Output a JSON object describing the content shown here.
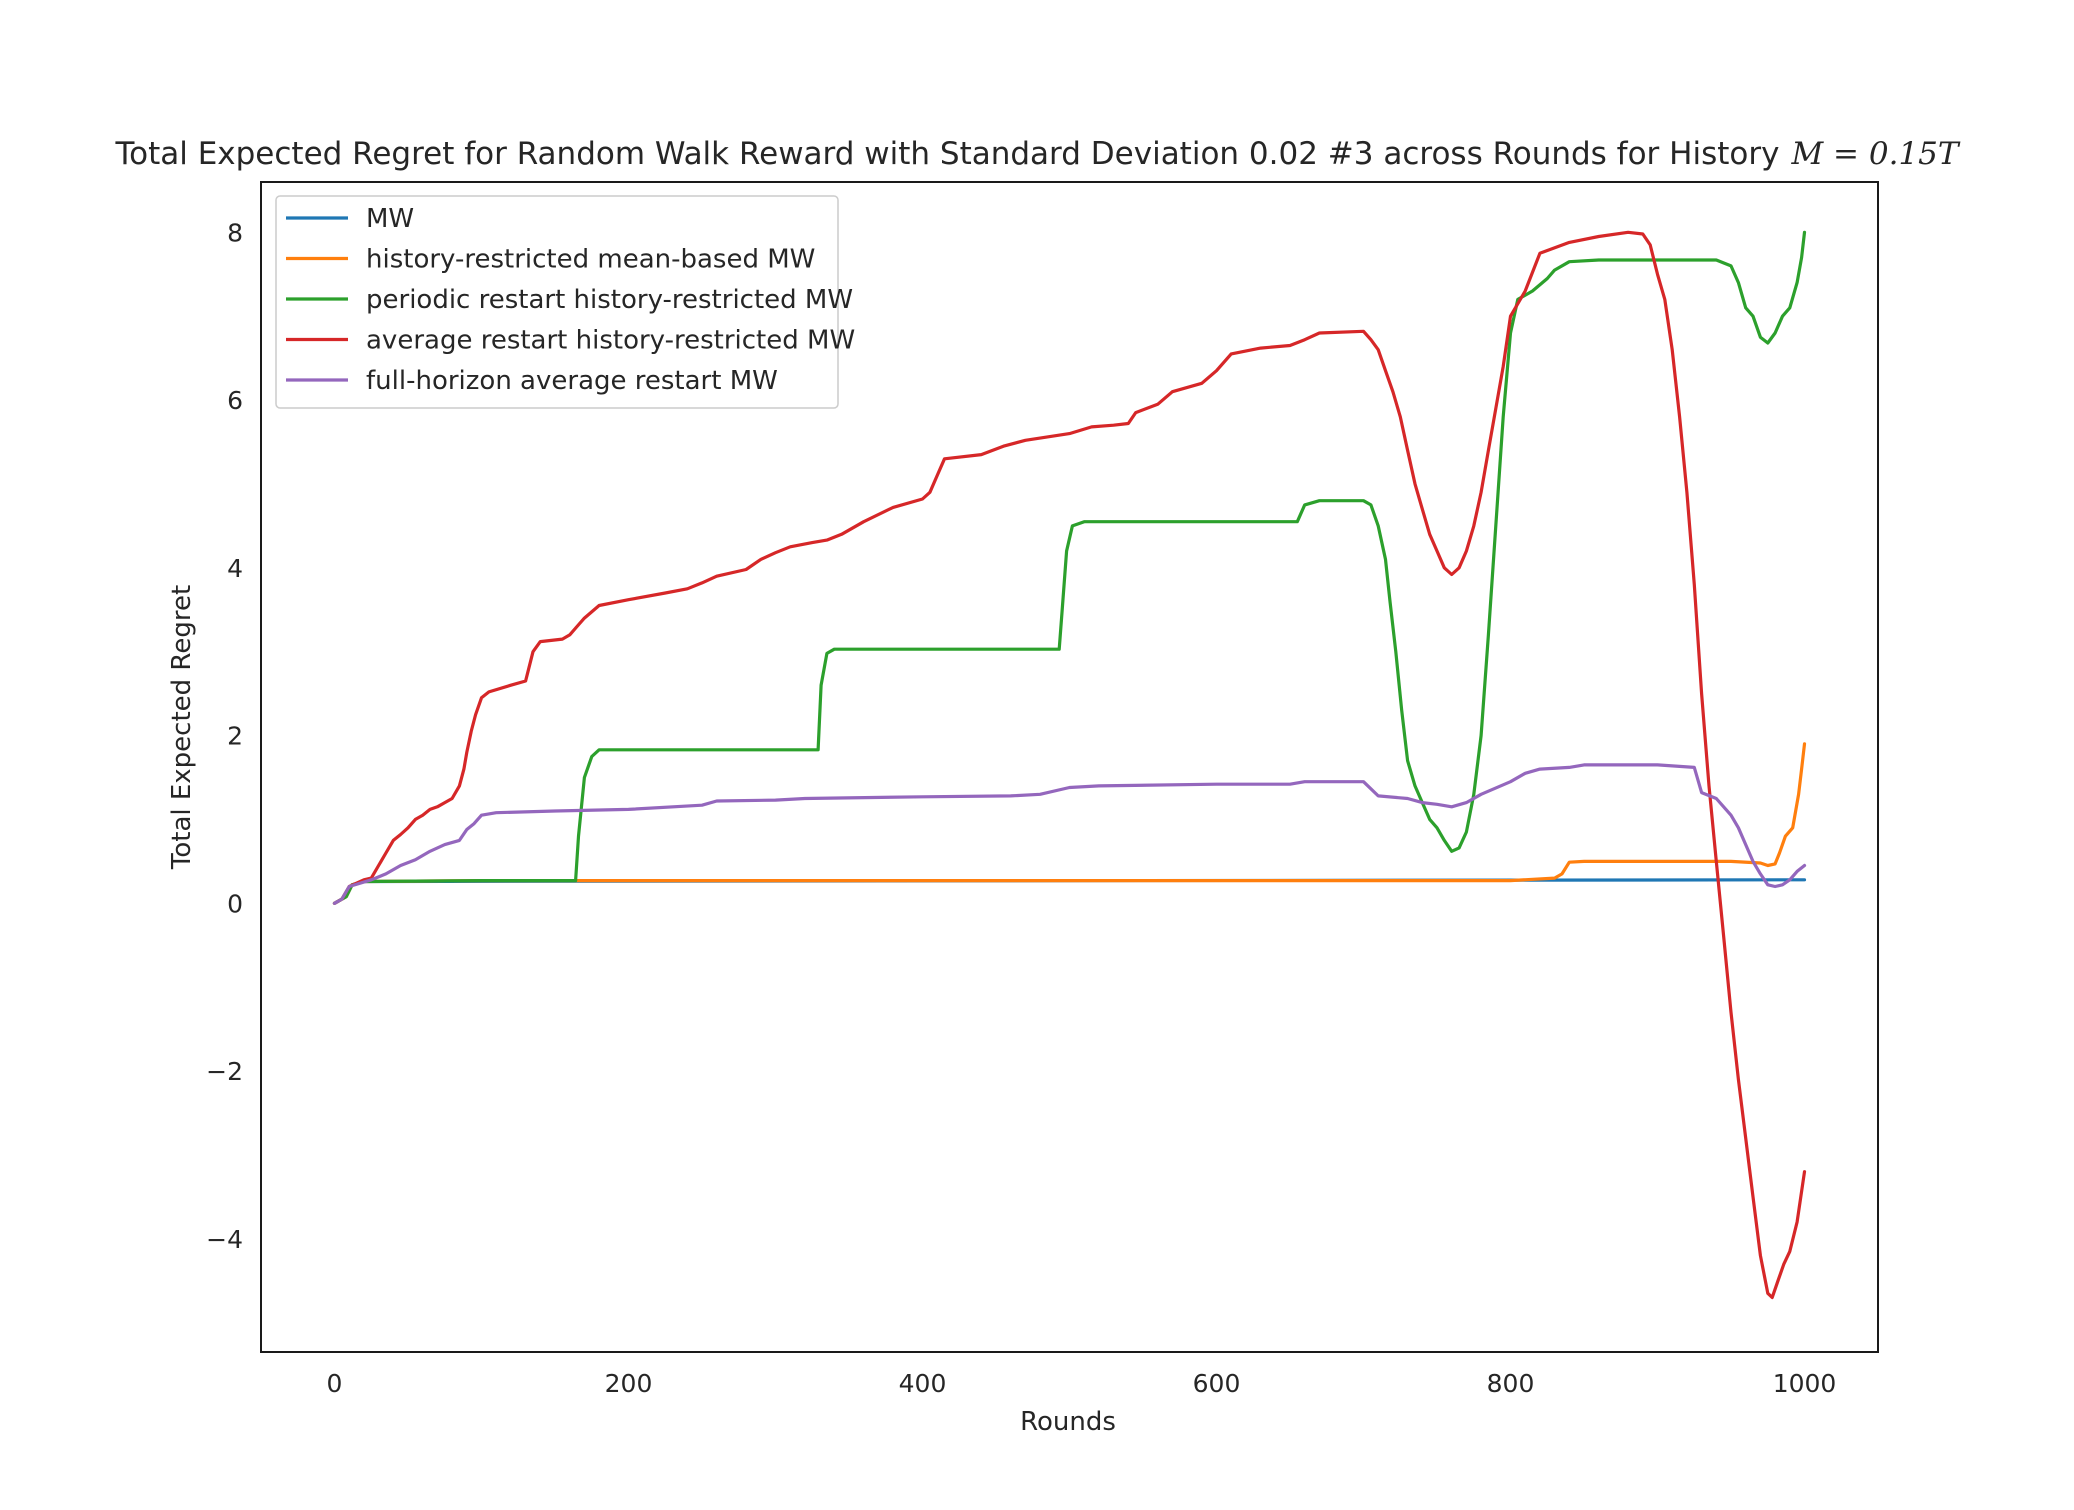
{
  "chart_data": {
    "type": "line",
    "title": "Total Expected Regret for Random Walk Reward with Standard Deviation 0.02 #3 across Rounds for History",
    "title_math": "M = 0.15T",
    "xlabel": "Rounds",
    "ylabel": "Total Expected Regret",
    "xlim": [
      -50,
      1050
    ],
    "ylim": [
      -5.35,
      8.6
    ],
    "xticks": [
      0,
      200,
      400,
      600,
      800,
      1000
    ],
    "xtick_labels": [
      "0",
      "200",
      "400",
      "600",
      "800",
      "1000"
    ],
    "yticks": [
      -4,
      -2,
      0,
      2,
      4,
      6,
      8
    ],
    "ytick_labels": [
      "−4",
      "−2",
      "0",
      "2",
      "4",
      "6",
      "8"
    ],
    "grid": false,
    "legend_position": "top-left",
    "series": [
      {
        "name": "MW",
        "color": "#1f77b4",
        "points": [
          [
            0,
            0
          ],
          [
            3,
            0.03
          ],
          [
            8,
            0.08
          ],
          [
            12,
            0.22
          ],
          [
            20,
            0.26
          ],
          [
            1000,
            0.28
          ]
        ]
      },
      {
        "name": "history-restricted mean-based MW",
        "color": "#ff7f0e",
        "points": [
          [
            0,
            0
          ],
          [
            3,
            0.03
          ],
          [
            8,
            0.08
          ],
          [
            12,
            0.22
          ],
          [
            20,
            0.26
          ],
          [
            100,
            0.27
          ],
          [
            300,
            0.27
          ],
          [
            600,
            0.27
          ],
          [
            800,
            0.27
          ],
          [
            830,
            0.3
          ],
          [
            835,
            0.35
          ],
          [
            840,
            0.49
          ],
          [
            850,
            0.5
          ],
          [
            900,
            0.5
          ],
          [
            950,
            0.5
          ],
          [
            970,
            0.48
          ],
          [
            975,
            0.45
          ],
          [
            980,
            0.47
          ],
          [
            983,
            0.6
          ],
          [
            987,
            0.8
          ],
          [
            992,
            0.9
          ],
          [
            996,
            1.3
          ],
          [
            998,
            1.6
          ],
          [
            1000,
            1.9
          ]
        ]
      },
      {
        "name": "periodic restart history-restricted MW",
        "color": "#2ca02c",
        "points": [
          [
            0,
            0
          ],
          [
            3,
            0.03
          ],
          [
            8,
            0.08
          ],
          [
            12,
            0.22
          ],
          [
            20,
            0.26
          ],
          [
            100,
            0.27
          ],
          [
            164,
            0.27
          ],
          [
            166,
            0.8
          ],
          [
            170,
            1.5
          ],
          [
            175,
            1.75
          ],
          [
            180,
            1.83
          ],
          [
            200,
            1.83
          ],
          [
            329,
            1.83
          ],
          [
            331,
            2.6
          ],
          [
            335,
            2.98
          ],
          [
            340,
            3.03
          ],
          [
            400,
            3.03
          ],
          [
            493,
            3.03
          ],
          [
            495,
            3.5
          ],
          [
            498,
            4.2
          ],
          [
            502,
            4.5
          ],
          [
            510,
            4.55
          ],
          [
            600,
            4.55
          ],
          [
            655,
            4.55
          ],
          [
            660,
            4.75
          ],
          [
            670,
            4.8
          ],
          [
            700,
            4.8
          ],
          [
            705,
            4.75
          ],
          [
            710,
            4.5
          ],
          [
            715,
            4.1
          ],
          [
            718,
            3.6
          ],
          [
            722,
            3.0
          ],
          [
            726,
            2.3
          ],
          [
            730,
            1.7
          ],
          [
            735,
            1.4
          ],
          [
            740,
            1.2
          ],
          [
            745,
            1.0
          ],
          [
            750,
            0.9
          ],
          [
            755,
            0.75
          ],
          [
            760,
            0.62
          ],
          [
            765,
            0.66
          ],
          [
            770,
            0.85
          ],
          [
            775,
            1.3
          ],
          [
            780,
            2.0
          ],
          [
            785,
            3.2
          ],
          [
            790,
            4.5
          ],
          [
            795,
            5.8
          ],
          [
            800,
            6.8
          ],
          [
            805,
            7.2
          ],
          [
            815,
            7.3
          ],
          [
            825,
            7.45
          ],
          [
            830,
            7.55
          ],
          [
            840,
            7.65
          ],
          [
            860,
            7.67
          ],
          [
            900,
            7.67
          ],
          [
            940,
            7.67
          ],
          [
            950,
            7.6
          ],
          [
            955,
            7.4
          ],
          [
            960,
            7.1
          ],
          [
            965,
            7.0
          ],
          [
            970,
            6.75
          ],
          [
            975,
            6.68
          ],
          [
            980,
            6.8
          ],
          [
            985,
            7.0
          ],
          [
            990,
            7.1
          ],
          [
            995,
            7.4
          ],
          [
            998,
            7.7
          ],
          [
            1000,
            8.0
          ]
        ]
      },
      {
        "name": "average restart history-restricted MW",
        "color": "#d62728",
        "points": [
          [
            0,
            0
          ],
          [
            5,
            0.05
          ],
          [
            10,
            0.2
          ],
          [
            20,
            0.28
          ],
          [
            25,
            0.3
          ],
          [
            30,
            0.45
          ],
          [
            35,
            0.6
          ],
          [
            40,
            0.75
          ],
          [
            45,
            0.82
          ],
          [
            50,
            0.9
          ],
          [
            55,
            1.0
          ],
          [
            60,
            1.05
          ],
          [
            65,
            1.12
          ],
          [
            70,
            1.15
          ],
          [
            75,
            1.2
          ],
          [
            80,
            1.25
          ],
          [
            85,
            1.4
          ],
          [
            88,
            1.6
          ],
          [
            90,
            1.8
          ],
          [
            93,
            2.05
          ],
          [
            96,
            2.25
          ],
          [
            100,
            2.45
          ],
          [
            105,
            2.52
          ],
          [
            120,
            2.6
          ],
          [
            130,
            2.65
          ],
          [
            135,
            3.0
          ],
          [
            140,
            3.12
          ],
          [
            155,
            3.15
          ],
          [
            160,
            3.2
          ],
          [
            165,
            3.3
          ],
          [
            170,
            3.4
          ],
          [
            180,
            3.55
          ],
          [
            200,
            3.62
          ],
          [
            225,
            3.7
          ],
          [
            240,
            3.75
          ],
          [
            250,
            3.82
          ],
          [
            260,
            3.9
          ],
          [
            280,
            3.98
          ],
          [
            290,
            4.1
          ],
          [
            300,
            4.18
          ],
          [
            310,
            4.25
          ],
          [
            325,
            4.3
          ],
          [
            335,
            4.33
          ],
          [
            345,
            4.4
          ],
          [
            360,
            4.55
          ],
          [
            380,
            4.72
          ],
          [
            400,
            4.82
          ],
          [
            405,
            4.9
          ],
          [
            410,
            5.1
          ],
          [
            415,
            5.3
          ],
          [
            440,
            5.35
          ],
          [
            455,
            5.45
          ],
          [
            470,
            5.52
          ],
          [
            500,
            5.6
          ],
          [
            515,
            5.68
          ],
          [
            530,
            5.7
          ],
          [
            540,
            5.72
          ],
          [
            545,
            5.85
          ],
          [
            560,
            5.95
          ],
          [
            570,
            6.1
          ],
          [
            590,
            6.2
          ],
          [
            600,
            6.35
          ],
          [
            610,
            6.55
          ],
          [
            630,
            6.62
          ],
          [
            650,
            6.65
          ],
          [
            660,
            6.72
          ],
          [
            670,
            6.8
          ],
          [
            700,
            6.82
          ],
          [
            705,
            6.72
          ],
          [
            710,
            6.6
          ],
          [
            715,
            6.35
          ],
          [
            720,
            6.1
          ],
          [
            725,
            5.8
          ],
          [
            730,
            5.4
          ],
          [
            735,
            5.0
          ],
          [
            740,
            4.7
          ],
          [
            745,
            4.4
          ],
          [
            750,
            4.2
          ],
          [
            755,
            4.0
          ],
          [
            760,
            3.92
          ],
          [
            765,
            4.0
          ],
          [
            770,
            4.2
          ],
          [
            775,
            4.5
          ],
          [
            780,
            4.9
          ],
          [
            785,
            5.4
          ],
          [
            790,
            5.9
          ],
          [
            795,
            6.4
          ],
          [
            800,
            7.0
          ],
          [
            810,
            7.3
          ],
          [
            820,
            7.75
          ],
          [
            840,
            7.88
          ],
          [
            860,
            7.95
          ],
          [
            880,
            8.0
          ],
          [
            890,
            7.98
          ],
          [
            895,
            7.85
          ],
          [
            900,
            7.5
          ],
          [
            905,
            7.2
          ],
          [
            910,
            6.6
          ],
          [
            915,
            5.8
          ],
          [
            920,
            4.9
          ],
          [
            925,
            3.8
          ],
          [
            930,
            2.5
          ],
          [
            935,
            1.4
          ],
          [
            940,
            0.5
          ],
          [
            945,
            -0.4
          ],
          [
            950,
            -1.3
          ],
          [
            955,
            -2.1
          ],
          [
            960,
            -2.8
          ],
          [
            965,
            -3.5
          ],
          [
            970,
            -4.2
          ],
          [
            975,
            -4.65
          ],
          [
            978,
            -4.7
          ],
          [
            982,
            -4.5
          ],
          [
            986,
            -4.3
          ],
          [
            990,
            -4.15
          ],
          [
            995,
            -3.8
          ],
          [
            1000,
            -3.2
          ]
        ]
      },
      {
        "name": "full-horizon average restart MW",
        "color": "#9467bd",
        "points": [
          [
            0,
            0
          ],
          [
            5,
            0.05
          ],
          [
            10,
            0.2
          ],
          [
            25,
            0.28
          ],
          [
            35,
            0.35
          ],
          [
            45,
            0.45
          ],
          [
            55,
            0.52
          ],
          [
            65,
            0.62
          ],
          [
            75,
            0.7
          ],
          [
            85,
            0.75
          ],
          [
            90,
            0.88
          ],
          [
            95,
            0.95
          ],
          [
            100,
            1.05
          ],
          [
            110,
            1.08
          ],
          [
            150,
            1.1
          ],
          [
            200,
            1.12
          ],
          [
            250,
            1.17
          ],
          [
            260,
            1.22
          ],
          [
            300,
            1.23
          ],
          [
            320,
            1.25
          ],
          [
            400,
            1.27
          ],
          [
            460,
            1.28
          ],
          [
            480,
            1.3
          ],
          [
            500,
            1.38
          ],
          [
            520,
            1.4
          ],
          [
            600,
            1.42
          ],
          [
            650,
            1.42
          ],
          [
            660,
            1.45
          ],
          [
            700,
            1.45
          ],
          [
            710,
            1.28
          ],
          [
            730,
            1.25
          ],
          [
            740,
            1.2
          ],
          [
            750,
            1.18
          ],
          [
            760,
            1.15
          ],
          [
            770,
            1.2
          ],
          [
            780,
            1.3
          ],
          [
            800,
            1.45
          ],
          [
            810,
            1.55
          ],
          [
            820,
            1.6
          ],
          [
            840,
            1.62
          ],
          [
            850,
            1.65
          ],
          [
            900,
            1.65
          ],
          [
            925,
            1.62
          ],
          [
            930,
            1.32
          ],
          [
            940,
            1.25
          ],
          [
            950,
            1.05
          ],
          [
            955,
            0.9
          ],
          [
            960,
            0.7
          ],
          [
            965,
            0.5
          ],
          [
            970,
            0.35
          ],
          [
            975,
            0.22
          ],
          [
            980,
            0.2
          ],
          [
            985,
            0.22
          ],
          [
            990,
            0.28
          ],
          [
            995,
            0.38
          ],
          [
            1000,
            0.45
          ]
        ]
      }
    ]
  }
}
